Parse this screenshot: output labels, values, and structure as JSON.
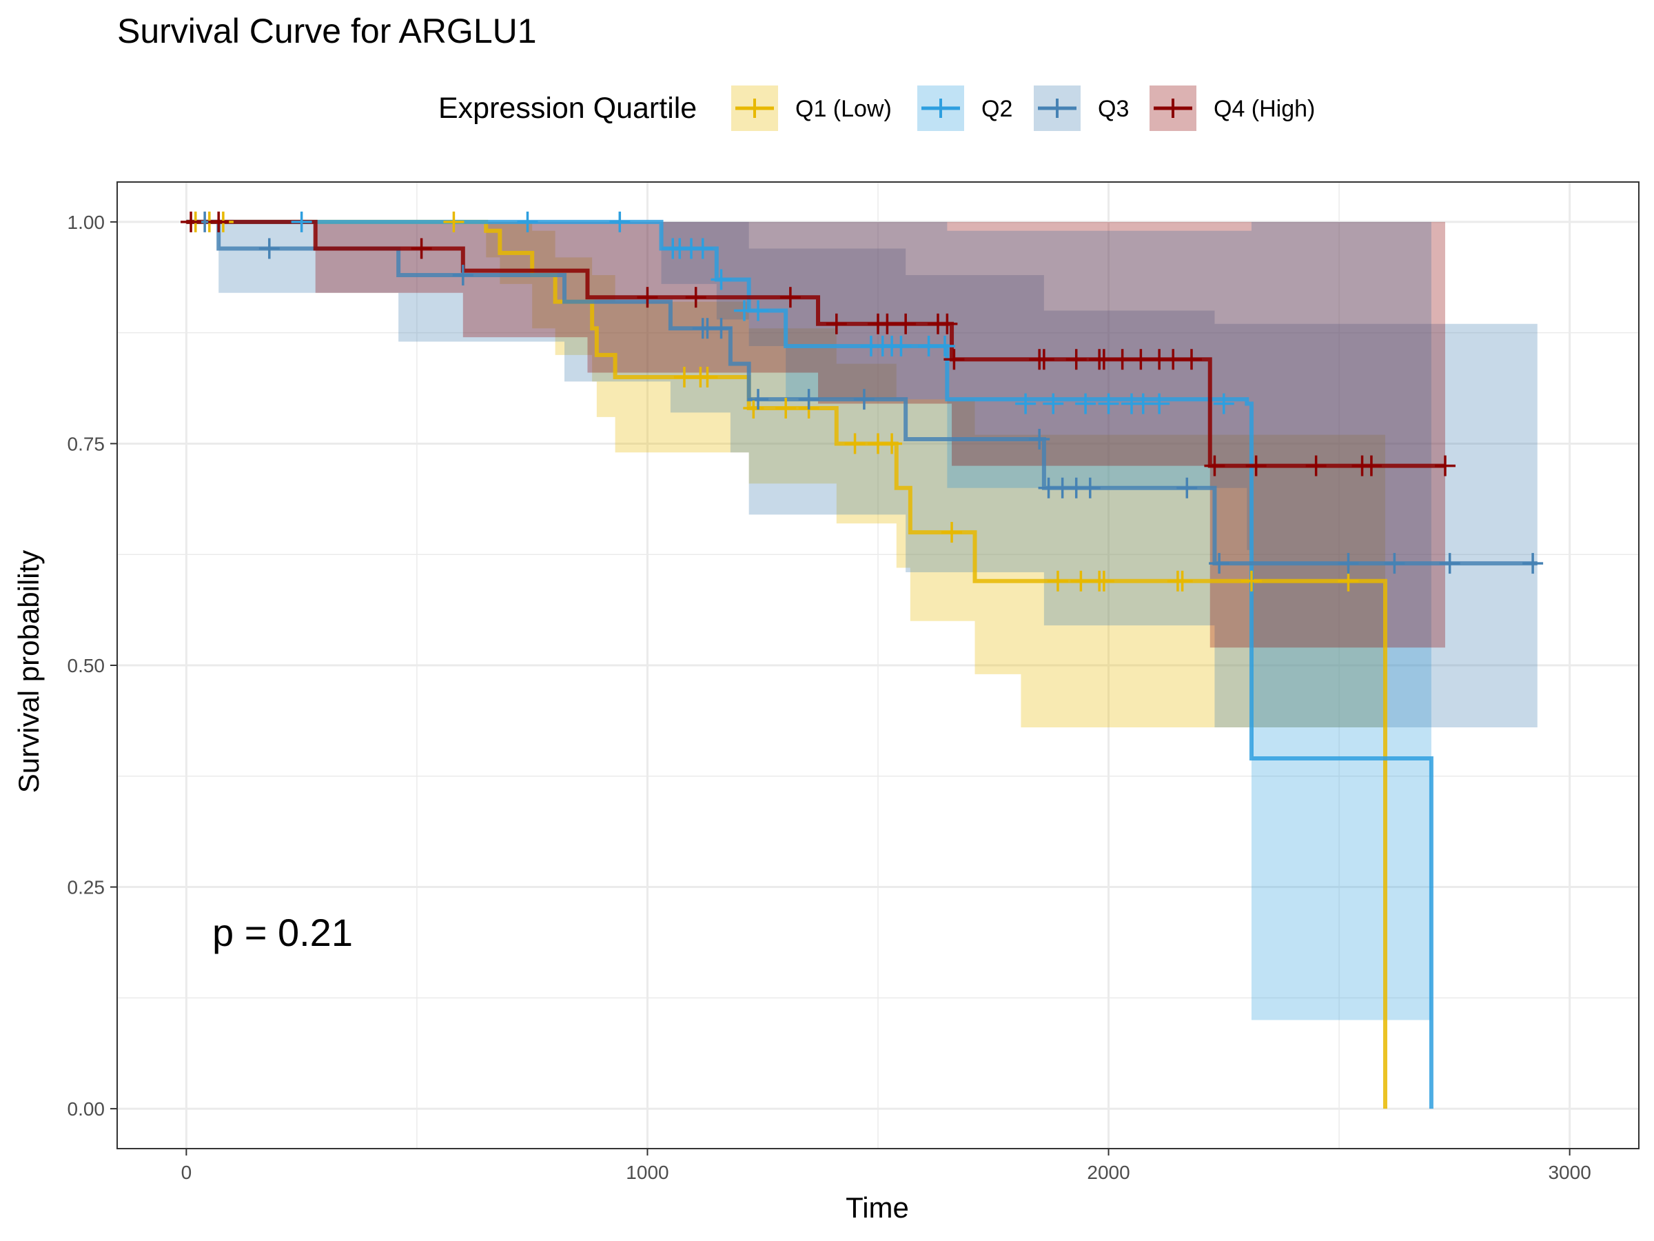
{
  "chart_data": {
    "type": "line",
    "subtype": "kaplan-meier step with confidence bands and censor marks",
    "title": "Survival Curve for ARGLU1",
    "xlabel": "Time",
    "ylabel": "Survival probability",
    "xlim": [
      -150,
      3150
    ],
    "ylim": [
      -0.045,
      1.045
    ],
    "xticks": [
      0,
      1000,
      2000,
      3000
    ],
    "xtick_labels": [
      "0",
      "1000",
      "2000",
      "3000"
    ],
    "yticks": [
      0,
      0.25,
      0.5,
      0.75,
      1.0
    ],
    "ytick_labels": [
      "0.00",
      "0.25",
      "0.50",
      "0.75",
      "1.00"
    ],
    "grid": true,
    "legend": {
      "title": "Expression Quartile",
      "position": "top",
      "labels": [
        "Q1 (Low)",
        "Q2",
        "Q3",
        "Q4 (High)"
      ]
    },
    "annotation": "p = 0.21",
    "series": [
      {
        "name": "Q1 (Low)",
        "color": "#E7B800",
        "band_opacity": 0.3,
        "steps": [
          [
            0,
            1.0
          ],
          [
            650,
            0.99
          ],
          [
            680,
            0.965
          ],
          [
            750,
            0.94
          ],
          [
            800,
            0.91
          ],
          [
            880,
            0.88
          ],
          [
            890,
            0.85
          ],
          [
            930,
            0.825
          ],
          [
            1220,
            0.79
          ],
          [
            1410,
            0.75
          ],
          [
            1540,
            0.7
          ],
          [
            1570,
            0.65
          ],
          [
            1710,
            0.595
          ],
          [
            2600,
            0.0
          ]
        ],
        "end": 2600,
        "upper": [
          [
            0,
            1.0
          ],
          [
            680,
            1.0
          ],
          [
            750,
            0.99
          ],
          [
            800,
            0.96
          ],
          [
            880,
            0.94
          ],
          [
            930,
            0.91
          ],
          [
            1220,
            0.88
          ],
          [
            1410,
            0.84
          ],
          [
            1540,
            0.8
          ],
          [
            1710,
            0.76
          ],
          [
            2600,
            0.0
          ]
        ],
        "lower": [
          [
            0,
            1.0
          ],
          [
            650,
            0.96
          ],
          [
            680,
            0.93
          ],
          [
            750,
            0.88
          ],
          [
            800,
            0.85
          ],
          [
            880,
            0.82
          ],
          [
            890,
            0.78
          ],
          [
            930,
            0.74
          ],
          [
            1220,
            0.705
          ],
          [
            1410,
            0.66
          ],
          [
            1540,
            0.61
          ],
          [
            1570,
            0.55
          ],
          [
            1710,
            0.49
          ],
          [
            1810,
            0.43
          ],
          [
            2600,
            0.0
          ]
        ],
        "censored": [
          [
            20,
            1.0
          ],
          [
            50,
            1.0
          ],
          [
            80,
            1.0
          ],
          [
            580,
            1.0
          ],
          [
            1080,
            0.825
          ],
          [
            1115,
            0.825
          ],
          [
            1130,
            0.825
          ],
          [
            1230,
            0.79
          ],
          [
            1300,
            0.79
          ],
          [
            1350,
            0.79
          ],
          [
            1450,
            0.75
          ],
          [
            1500,
            0.75
          ],
          [
            1530,
            0.75
          ],
          [
            1660,
            0.65
          ],
          [
            1890,
            0.595
          ],
          [
            1940,
            0.595
          ],
          [
            1980,
            0.595
          ],
          [
            1990,
            0.595
          ],
          [
            2150,
            0.595
          ],
          [
            2160,
            0.595
          ],
          [
            2310,
            0.595
          ],
          [
            2520,
            0.595
          ]
        ]
      },
      {
        "name": "Q2",
        "color": "#2E9FDF",
        "band_opacity": 0.3,
        "steps": [
          [
            0,
            1.0
          ],
          [
            1030,
            0.97
          ],
          [
            1150,
            0.935
          ],
          [
            1220,
            0.9
          ],
          [
            1300,
            0.86
          ],
          [
            1650,
            0.8
          ],
          [
            2300,
            0.795
          ],
          [
            2310,
            0.395
          ],
          [
            2700,
            0.0
          ]
        ],
        "end": 2700,
        "upper": [
          [
            0,
            1.0
          ],
          [
            1030,
            1.0
          ],
          [
            1150,
            1.0
          ],
          [
            1220,
            1.0
          ],
          [
            1300,
            1.0
          ],
          [
            1650,
            0.99
          ],
          [
            2310,
            1.0
          ],
          [
            2700,
            0.0
          ]
        ],
        "lower": [
          [
            0,
            1.0
          ],
          [
            1030,
            0.93
          ],
          [
            1150,
            0.89
          ],
          [
            1220,
            0.86
          ],
          [
            1300,
            0.8
          ],
          [
            1650,
            0.7
          ],
          [
            2300,
            0.63
          ],
          [
            2310,
            0.1
          ],
          [
            2700,
            0.0
          ]
        ],
        "censored": [
          [
            250,
            1.0
          ],
          [
            740,
            1.0
          ],
          [
            940,
            1.0
          ],
          [
            1055,
            0.97
          ],
          [
            1070,
            0.97
          ],
          [
            1095,
            0.97
          ],
          [
            1120,
            0.97
          ],
          [
            1160,
            0.935
          ],
          [
            1210,
            0.9
          ],
          [
            1240,
            0.9
          ],
          [
            1485,
            0.86
          ],
          [
            1510,
            0.86
          ],
          [
            1530,
            0.86
          ],
          [
            1550,
            0.86
          ],
          [
            1610,
            0.86
          ],
          [
            1645,
            0.86
          ],
          [
            1820,
            0.795
          ],
          [
            1880,
            0.795
          ],
          [
            1950,
            0.795
          ],
          [
            2000,
            0.795
          ],
          [
            2050,
            0.795
          ],
          [
            2075,
            0.795
          ],
          [
            2110,
            0.795
          ],
          [
            2250,
            0.795
          ]
        ]
      },
      {
        "name": "Q3",
        "color": "#4682B4",
        "band_opacity": 0.3,
        "steps": [
          [
            0,
            1.0
          ],
          [
            70,
            0.97
          ],
          [
            460,
            0.94
          ],
          [
            820,
            0.91
          ],
          [
            1050,
            0.88
          ],
          [
            1180,
            0.84
          ],
          [
            1220,
            0.8
          ],
          [
            1560,
            0.755
          ],
          [
            1860,
            0.7
          ],
          [
            2230,
            0.615
          ],
          [
            2930,
            0.615
          ]
        ],
        "end": 2930,
        "upper": [
          [
            0,
            1.0
          ],
          [
            70,
            1.0
          ],
          [
            460,
            1.0
          ],
          [
            820,
            1.0
          ],
          [
            1050,
            1.0
          ],
          [
            1180,
            1.0
          ],
          [
            1220,
            0.97
          ],
          [
            1560,
            0.94
          ],
          [
            1860,
            0.9
          ],
          [
            2230,
            0.885
          ],
          [
            2930,
            0.885
          ]
        ],
        "lower": [
          [
            0,
            1.0
          ],
          [
            70,
            0.92
          ],
          [
            460,
            0.865
          ],
          [
            820,
            0.82
          ],
          [
            1050,
            0.785
          ],
          [
            1180,
            0.74
          ],
          [
            1220,
            0.67
          ],
          [
            1560,
            0.605
          ],
          [
            1860,
            0.545
          ],
          [
            2230,
            0.43
          ],
          [
            2930,
            0.43
          ]
        ],
        "censored": [
          [
            40,
            1.0
          ],
          [
            180,
            0.97
          ],
          [
            600,
            0.94
          ],
          [
            1120,
            0.88
          ],
          [
            1130,
            0.88
          ],
          [
            1160,
            0.88
          ],
          [
            1240,
            0.8
          ],
          [
            1350,
            0.8
          ],
          [
            1470,
            0.8
          ],
          [
            1850,
            0.755
          ],
          [
            1870,
            0.7
          ],
          [
            1900,
            0.7
          ],
          [
            1930,
            0.7
          ],
          [
            1960,
            0.7
          ],
          [
            2170,
            0.7
          ],
          [
            2240,
            0.615
          ],
          [
            2520,
            0.615
          ],
          [
            2620,
            0.615
          ],
          [
            2740,
            0.615
          ],
          [
            2920,
            0.615
          ]
        ]
      },
      {
        "name": "Q4 (High)",
        "color": "#8B0000",
        "band_opacity": 0.3,
        "steps": [
          [
            0,
            1.0
          ],
          [
            280,
            0.97
          ],
          [
            600,
            0.945
          ],
          [
            870,
            0.915
          ],
          [
            1370,
            0.885
          ],
          [
            1660,
            0.845
          ],
          [
            2220,
            0.725
          ],
          [
            2730,
            0.725
          ]
        ],
        "end": 2730,
        "upper": [
          [
            0,
            1.0
          ],
          [
            280,
            1.0
          ],
          [
            600,
            1.0
          ],
          [
            870,
            1.0
          ],
          [
            1370,
            1.0
          ],
          [
            1660,
            1.0
          ],
          [
            2220,
            1.0
          ],
          [
            2730,
            1.0
          ]
        ],
        "lower": [
          [
            0,
            1.0
          ],
          [
            280,
            0.92
          ],
          [
            600,
            0.87
          ],
          [
            870,
            0.83
          ],
          [
            1370,
            0.795
          ],
          [
            1660,
            0.725
          ],
          [
            2220,
            0.52
          ],
          [
            2730,
            0.52
          ]
        ],
        "censored": [
          [
            10,
            1.0
          ],
          [
            70,
            1.0
          ],
          [
            510,
            0.97
          ],
          [
            1000,
            0.915
          ],
          [
            1105,
            0.915
          ],
          [
            1310,
            0.915
          ],
          [
            1410,
            0.885
          ],
          [
            1500,
            0.885
          ],
          [
            1520,
            0.885
          ],
          [
            1560,
            0.885
          ],
          [
            1630,
            0.885
          ],
          [
            1650,
            0.885
          ],
          [
            1665,
            0.845
          ],
          [
            1850,
            0.845
          ],
          [
            1860,
            0.845
          ],
          [
            1930,
            0.845
          ],
          [
            1980,
            0.845
          ],
          [
            1990,
            0.845
          ],
          [
            2030,
            0.845
          ],
          [
            2070,
            0.845
          ],
          [
            2110,
            0.845
          ],
          [
            2140,
            0.845
          ],
          [
            2180,
            0.845
          ],
          [
            2230,
            0.725
          ],
          [
            2320,
            0.725
          ],
          [
            2450,
            0.725
          ],
          [
            2550,
            0.725
          ],
          [
            2570,
            0.725
          ],
          [
            2730,
            0.725
          ]
        ]
      }
    ]
  }
}
